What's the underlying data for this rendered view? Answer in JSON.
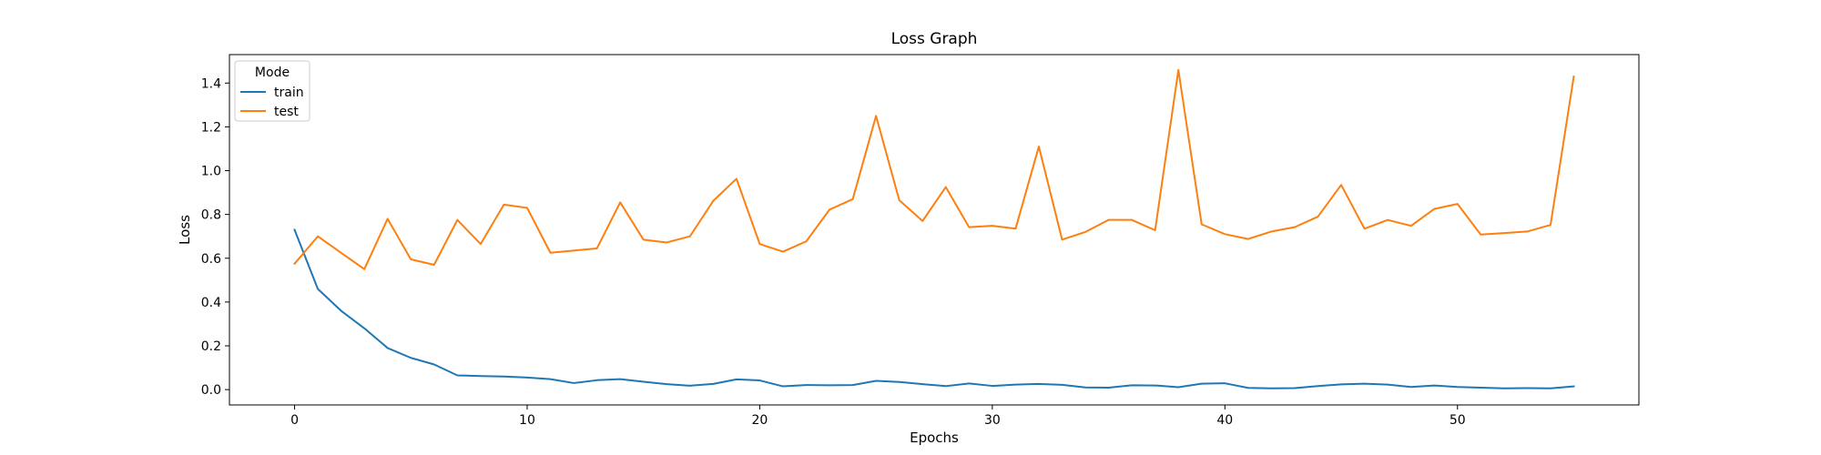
{
  "chart_data": {
    "type": "line",
    "title": "Loss Graph",
    "xlabel": "Epochs",
    "ylabel": "Loss",
    "xlim": [
      -2.8,
      57.8
    ],
    "ylim": [
      -0.07,
      1.53
    ],
    "xticks": [
      0,
      10,
      20,
      30,
      40,
      50
    ],
    "yticks": [
      0.0,
      0.2,
      0.4,
      0.6,
      0.8,
      1.0,
      1.2,
      1.4
    ],
    "grid": false,
    "legend": {
      "title": "Mode",
      "placement": "top-left"
    },
    "x": [
      0,
      1,
      2,
      3,
      4,
      5,
      6,
      7,
      8,
      9,
      10,
      11,
      12,
      13,
      14,
      15,
      16,
      17,
      18,
      19,
      20,
      21,
      22,
      23,
      24,
      25,
      26,
      27,
      28,
      29,
      30,
      31,
      32,
      33,
      34,
      35,
      36,
      37,
      38,
      39,
      40,
      41,
      42,
      43,
      44,
      45,
      46,
      47,
      48,
      49,
      50,
      51,
      52,
      53,
      54,
      55
    ],
    "series": [
      {
        "name": "train",
        "color": "#1f77b4",
        "values": [
          0.73,
          0.46,
          0.36,
          0.28,
          0.19,
          0.145,
          0.115,
          0.065,
          0.062,
          0.06,
          0.055,
          0.048,
          0.03,
          0.043,
          0.048,
          0.036,
          0.025,
          0.018,
          0.026,
          0.047,
          0.042,
          0.015,
          0.021,
          0.02,
          0.021,
          0.04,
          0.035,
          0.025,
          0.016,
          0.028,
          0.017,
          0.023,
          0.026,
          0.022,
          0.01,
          0.009,
          0.02,
          0.019,
          0.011,
          0.027,
          0.029,
          0.008,
          0.006,
          0.007,
          0.016,
          0.024,
          0.027,
          0.023,
          0.012,
          0.019,
          0.012,
          0.009,
          0.006,
          0.007,
          0.006,
          0.015
        ]
      },
      {
        "name": "test",
        "color": "#ff7f0e",
        "values": [
          0.575,
          0.7,
          0.625,
          0.55,
          0.78,
          0.595,
          0.57,
          0.775,
          0.665,
          0.845,
          0.83,
          0.625,
          0.635,
          0.645,
          0.855,
          0.685,
          0.672,
          0.7,
          0.862,
          0.963,
          0.665,
          0.63,
          0.677,
          0.822,
          0.87,
          1.25,
          0.865,
          0.77,
          0.925,
          0.742,
          0.748,
          0.735,
          1.11,
          0.685,
          0.72,
          0.775,
          0.775,
          0.728,
          1.46,
          0.755,
          0.71,
          0.688,
          0.722,
          0.742,
          0.79,
          0.935,
          0.735,
          0.775,
          0.748,
          0.825,
          0.848,
          0.708,
          0.715,
          0.722,
          0.752,
          1.43
        ]
      }
    ]
  }
}
